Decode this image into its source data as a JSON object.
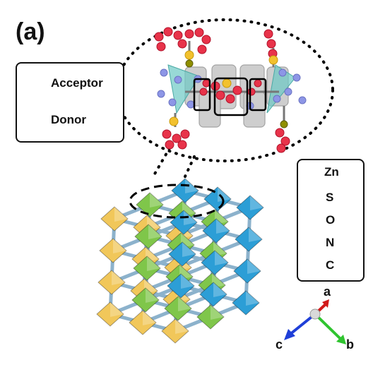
{
  "panel_label": "(a)",
  "legend_left": {
    "items": [
      {
        "label": "Acceptor",
        "icon": "acceptor-ring-icon"
      },
      {
        "label": "Donor",
        "icon": "donor-molecule-icon"
      }
    ]
  },
  "legend_right": {
    "items": [
      {
        "label": "Zn",
        "icon": "zn-triangle-icon",
        "color": "#6cc9c4"
      },
      {
        "label": "S",
        "icon": "s-atom-icon",
        "color": "#f2c12e"
      },
      {
        "label": "O",
        "icon": "o-atom-icon",
        "color": "#8d96e6"
      },
      {
        "label": "N",
        "icon": "n-atom-icon",
        "color": "#8f8f00"
      },
      {
        "label": "C",
        "icon": "c-atom-icon",
        "color": "#e8334a"
      }
    ]
  },
  "axes": {
    "labels": [
      {
        "label": "a",
        "color": "#d11a1a"
      },
      {
        "label": "b",
        "color": "#2fc42f"
      },
      {
        "label": "c",
        "color": "#1f3fd8"
      }
    ]
  },
  "colors": {
    "blue_node": "#2c9ed6",
    "green_node": "#7fc64a",
    "yellow_node": "#f1c75a"
  }
}
